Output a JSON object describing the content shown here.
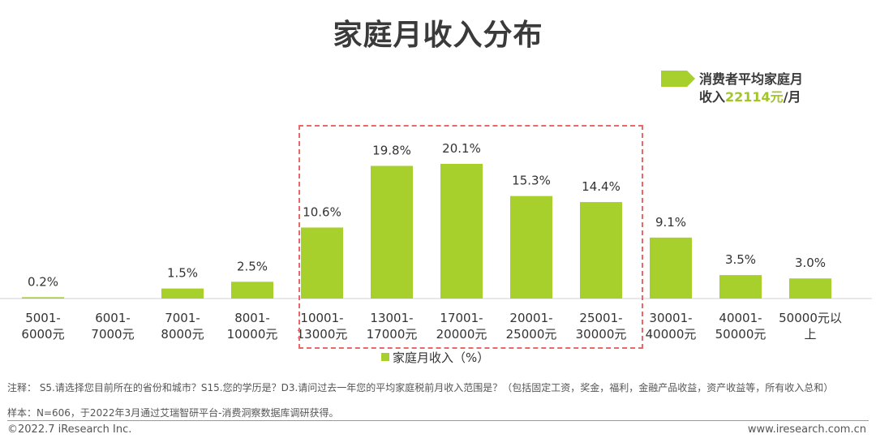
{
  "title": "家庭月收入分布",
  "callout": {
    "line1": "消费者平均家庭月",
    "line2_prefix": "收入",
    "line2_value": "22114元",
    "line2_suffix": "/月"
  },
  "legend": {
    "label": "家庭月收入（%）"
  },
  "notes": {
    "line1": "注释： S5.请选择您目前所在的省份和城市？S15.您的学历是？D3.请问过去一年您的平均家庭税前月收入范围是？（包括固定工资，奖金，福利，金融产品收益，资产收益等，所有收入总和）",
    "line2": "样本：N=606，于2022年3月通过艾瑞智研平台-消费洞察数据库调研获得。"
  },
  "footer": {
    "copyright": "©2022.7 iResearch Inc.",
    "website": "www.iresearch.com.cn"
  },
  "colors": {
    "bar": "#a8d02c",
    "highlight_border": "#e66a6a",
    "callout_value": "#a3c52c"
  },
  "chart_data": {
    "type": "bar",
    "title": "家庭月收入分布",
    "categories": [
      [
        "5001-",
        "6000元"
      ],
      [
        "6001-",
        "7000元"
      ],
      [
        "7001-",
        "8000元"
      ],
      [
        "8001-",
        "10000元"
      ],
      [
        "10001-",
        "13000元"
      ],
      [
        "13001-",
        "17000元"
      ],
      [
        "17001-",
        "20000元"
      ],
      [
        "20001-",
        "25000元"
      ],
      [
        "25001-",
        "30000元"
      ],
      [
        "30001-",
        "40000元"
      ],
      [
        "40001-",
        "50000元"
      ],
      [
        "50000元以",
        "上"
      ]
    ],
    "series": [
      {
        "name": "家庭月收入（%）",
        "values": [
          0.2,
          0.0,
          1.5,
          2.5,
          10.6,
          19.8,
          20.1,
          15.3,
          14.4,
          9.1,
          3.5,
          3.0
        ],
        "labels": [
          "0.2%",
          "",
          "1.5%",
          "2.5%",
          "10.6%",
          "19.8%",
          "20.1%",
          "15.3%",
          "14.4%",
          "9.1%",
          "3.5%",
          "3.0%"
        ]
      }
    ],
    "ylim": [
      0,
      25
    ],
    "highlight": [
      "10001-13000元",
      "13001-17000元",
      "17001-20000元",
      "20001-25000元",
      "25001-30000元"
    ],
    "grid": false,
    "legend_position": "bottom"
  }
}
